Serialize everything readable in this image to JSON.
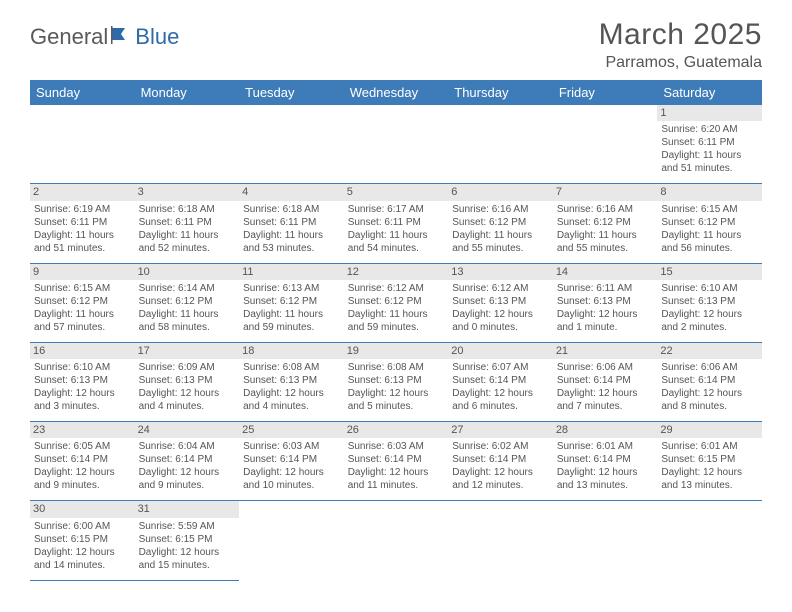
{
  "logo": {
    "part1": "General",
    "part2": "Blue"
  },
  "title": "March 2025",
  "location": "Parramos, Guatemala",
  "colors": {
    "header_bg": "#3d7cb8",
    "header_text": "#ffffff",
    "border": "#3d7cb8",
    "daynum_bg": "#e8e8e8",
    "text": "#555555",
    "logo_gray": "#5a5a5a",
    "logo_blue": "#2d6aa8"
  },
  "weekdays": [
    "Sunday",
    "Monday",
    "Tuesday",
    "Wednesday",
    "Thursday",
    "Friday",
    "Saturday"
  ],
  "weeks": [
    [
      null,
      null,
      null,
      null,
      null,
      null,
      {
        "n": "1",
        "sr": "Sunrise: 6:20 AM",
        "ss": "Sunset: 6:11 PM",
        "d1": "Daylight: 11 hours",
        "d2": "and 51 minutes."
      }
    ],
    [
      {
        "n": "2",
        "sr": "Sunrise: 6:19 AM",
        "ss": "Sunset: 6:11 PM",
        "d1": "Daylight: 11 hours",
        "d2": "and 51 minutes."
      },
      {
        "n": "3",
        "sr": "Sunrise: 6:18 AM",
        "ss": "Sunset: 6:11 PM",
        "d1": "Daylight: 11 hours",
        "d2": "and 52 minutes."
      },
      {
        "n": "4",
        "sr": "Sunrise: 6:18 AM",
        "ss": "Sunset: 6:11 PM",
        "d1": "Daylight: 11 hours",
        "d2": "and 53 minutes."
      },
      {
        "n": "5",
        "sr": "Sunrise: 6:17 AM",
        "ss": "Sunset: 6:11 PM",
        "d1": "Daylight: 11 hours",
        "d2": "and 54 minutes."
      },
      {
        "n": "6",
        "sr": "Sunrise: 6:16 AM",
        "ss": "Sunset: 6:12 PM",
        "d1": "Daylight: 11 hours",
        "d2": "and 55 minutes."
      },
      {
        "n": "7",
        "sr": "Sunrise: 6:16 AM",
        "ss": "Sunset: 6:12 PM",
        "d1": "Daylight: 11 hours",
        "d2": "and 55 minutes."
      },
      {
        "n": "8",
        "sr": "Sunrise: 6:15 AM",
        "ss": "Sunset: 6:12 PM",
        "d1": "Daylight: 11 hours",
        "d2": "and 56 minutes."
      }
    ],
    [
      {
        "n": "9",
        "sr": "Sunrise: 6:15 AM",
        "ss": "Sunset: 6:12 PM",
        "d1": "Daylight: 11 hours",
        "d2": "and 57 minutes."
      },
      {
        "n": "10",
        "sr": "Sunrise: 6:14 AM",
        "ss": "Sunset: 6:12 PM",
        "d1": "Daylight: 11 hours",
        "d2": "and 58 minutes."
      },
      {
        "n": "11",
        "sr": "Sunrise: 6:13 AM",
        "ss": "Sunset: 6:12 PM",
        "d1": "Daylight: 11 hours",
        "d2": "and 59 minutes."
      },
      {
        "n": "12",
        "sr": "Sunrise: 6:12 AM",
        "ss": "Sunset: 6:12 PM",
        "d1": "Daylight: 11 hours",
        "d2": "and 59 minutes."
      },
      {
        "n": "13",
        "sr": "Sunrise: 6:12 AM",
        "ss": "Sunset: 6:13 PM",
        "d1": "Daylight: 12 hours",
        "d2": "and 0 minutes."
      },
      {
        "n": "14",
        "sr": "Sunrise: 6:11 AM",
        "ss": "Sunset: 6:13 PM",
        "d1": "Daylight: 12 hours",
        "d2": "and 1 minute."
      },
      {
        "n": "15",
        "sr": "Sunrise: 6:10 AM",
        "ss": "Sunset: 6:13 PM",
        "d1": "Daylight: 12 hours",
        "d2": "and 2 minutes."
      }
    ],
    [
      {
        "n": "16",
        "sr": "Sunrise: 6:10 AM",
        "ss": "Sunset: 6:13 PM",
        "d1": "Daylight: 12 hours",
        "d2": "and 3 minutes."
      },
      {
        "n": "17",
        "sr": "Sunrise: 6:09 AM",
        "ss": "Sunset: 6:13 PM",
        "d1": "Daylight: 12 hours",
        "d2": "and 4 minutes."
      },
      {
        "n": "18",
        "sr": "Sunrise: 6:08 AM",
        "ss": "Sunset: 6:13 PM",
        "d1": "Daylight: 12 hours",
        "d2": "and 4 minutes."
      },
      {
        "n": "19",
        "sr": "Sunrise: 6:08 AM",
        "ss": "Sunset: 6:13 PM",
        "d1": "Daylight: 12 hours",
        "d2": "and 5 minutes."
      },
      {
        "n": "20",
        "sr": "Sunrise: 6:07 AM",
        "ss": "Sunset: 6:14 PM",
        "d1": "Daylight: 12 hours",
        "d2": "and 6 minutes."
      },
      {
        "n": "21",
        "sr": "Sunrise: 6:06 AM",
        "ss": "Sunset: 6:14 PM",
        "d1": "Daylight: 12 hours",
        "d2": "and 7 minutes."
      },
      {
        "n": "22",
        "sr": "Sunrise: 6:06 AM",
        "ss": "Sunset: 6:14 PM",
        "d1": "Daylight: 12 hours",
        "d2": "and 8 minutes."
      }
    ],
    [
      {
        "n": "23",
        "sr": "Sunrise: 6:05 AM",
        "ss": "Sunset: 6:14 PM",
        "d1": "Daylight: 12 hours",
        "d2": "and 9 minutes."
      },
      {
        "n": "24",
        "sr": "Sunrise: 6:04 AM",
        "ss": "Sunset: 6:14 PM",
        "d1": "Daylight: 12 hours",
        "d2": "and 9 minutes."
      },
      {
        "n": "25",
        "sr": "Sunrise: 6:03 AM",
        "ss": "Sunset: 6:14 PM",
        "d1": "Daylight: 12 hours",
        "d2": "and 10 minutes."
      },
      {
        "n": "26",
        "sr": "Sunrise: 6:03 AM",
        "ss": "Sunset: 6:14 PM",
        "d1": "Daylight: 12 hours",
        "d2": "and 11 minutes."
      },
      {
        "n": "27",
        "sr": "Sunrise: 6:02 AM",
        "ss": "Sunset: 6:14 PM",
        "d1": "Daylight: 12 hours",
        "d2": "and 12 minutes."
      },
      {
        "n": "28",
        "sr": "Sunrise: 6:01 AM",
        "ss": "Sunset: 6:14 PM",
        "d1": "Daylight: 12 hours",
        "d2": "and 13 minutes."
      },
      {
        "n": "29",
        "sr": "Sunrise: 6:01 AM",
        "ss": "Sunset: 6:15 PM",
        "d1": "Daylight: 12 hours",
        "d2": "and 13 minutes."
      }
    ],
    [
      {
        "n": "30",
        "sr": "Sunrise: 6:00 AM",
        "ss": "Sunset: 6:15 PM",
        "d1": "Daylight: 12 hours",
        "d2": "and 14 minutes."
      },
      {
        "n": "31",
        "sr": "Sunrise: 5:59 AM",
        "ss": "Sunset: 6:15 PM",
        "d1": "Daylight: 12 hours",
        "d2": "and 15 minutes."
      },
      null,
      null,
      null,
      null,
      null
    ]
  ]
}
